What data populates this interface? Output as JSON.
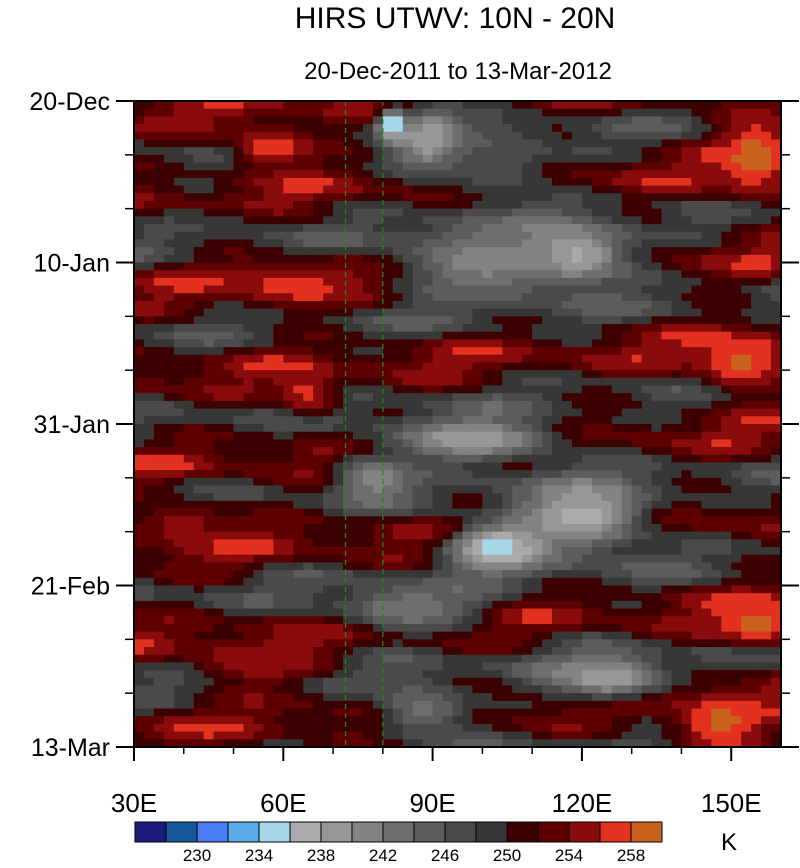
{
  "chart_data": {
    "type": "heatmap",
    "title": "HIRS UTWV: 10N - 20N",
    "subtitle": "20-Dec-2011 to 13-Mar-2012",
    "x_axis": {
      "range": [
        30,
        160
      ],
      "ticks": [
        30,
        60,
        90,
        120,
        150
      ],
      "tick_labels": [
        "30E",
        "60E",
        "90E",
        "120E",
        "150E"
      ]
    },
    "y_axis": {
      "range_days": [
        0,
        84
      ],
      "direction": "top-to-bottom",
      "ticks": [
        0,
        21,
        42,
        63,
        84
      ],
      "tick_labels": [
        "20-Dec",
        "10-Jan",
        "31-Jan",
        "21-Feb",
        "13-Mar"
      ]
    },
    "reference_lines_lon": [
      72.5,
      80
    ],
    "colorbar": {
      "unit": "K",
      "levels": [
        228,
        230,
        232,
        234,
        236,
        238,
        240,
        242,
        244,
        246,
        248,
        250,
        252,
        254,
        256,
        258
      ],
      "label_values": [
        "230",
        "234",
        "238",
        "242",
        "246",
        "250",
        "254",
        "258"
      ],
      "colors": [
        "#1c1c7a",
        "#175a9c",
        "#4a7df5",
        "#5aaae8",
        "#a6d8ea",
        "#aaaaaa",
        "#979797",
        "#838383",
        "#6e6e6e",
        "#5c5c5c",
        "#4a4a4a",
        "#373737",
        "#3d0000",
        "#5e0000",
        "#8a0b0b",
        "#e2311e",
        "#c9621f"
      ]
    },
    "features": [
      {
        "lon": 58,
        "day": 6,
        "value": 258,
        "sx": 9,
        "sy": 3
      },
      {
        "lon": 82,
        "day": 3,
        "value": 232,
        "sx": 3,
        "sy": 2
      },
      {
        "lon": 90,
        "day": 5,
        "value": 236,
        "sx": 7,
        "sy": 4
      },
      {
        "lon": 103,
        "day": 8,
        "value": 246,
        "sx": 12,
        "sy": 6
      },
      {
        "lon": 155,
        "day": 7,
        "value": 259,
        "sx": 8,
        "sy": 6
      },
      {
        "lon": 118,
        "day": 20,
        "value": 236,
        "sx": 12,
        "sy": 4
      },
      {
        "lon": 100,
        "day": 21,
        "value": 241,
        "sx": 18,
        "sy": 5
      },
      {
        "lon": 62,
        "day": 24,
        "value": 257,
        "sx": 12,
        "sy": 3
      },
      {
        "lon": 45,
        "day": 16,
        "value": 248,
        "sx": 12,
        "sy": 2
      },
      {
        "lon": 152,
        "day": 34,
        "value": 259,
        "sx": 9,
        "sy": 4
      },
      {
        "lon": 65,
        "day": 38,
        "value": 257,
        "sx": 6,
        "sy": 3
      },
      {
        "lon": 98,
        "day": 44,
        "value": 238,
        "sx": 18,
        "sy": 3
      },
      {
        "lon": 78,
        "day": 49,
        "value": 240,
        "sx": 7,
        "sy": 3
      },
      {
        "lon": 120,
        "day": 54,
        "value": 237,
        "sx": 14,
        "sy": 5
      },
      {
        "lon": 103,
        "day": 58,
        "value": 234,
        "sx": 10,
        "sy": 3
      },
      {
        "lon": 40,
        "day": 55,
        "value": 255,
        "sx": 12,
        "sy": 3
      },
      {
        "lon": 85,
        "day": 66,
        "value": 242,
        "sx": 15,
        "sy": 3
      },
      {
        "lon": 155,
        "day": 68,
        "value": 259,
        "sx": 8,
        "sy": 3
      },
      {
        "lon": 125,
        "day": 75,
        "value": 238,
        "sx": 12,
        "sy": 3
      },
      {
        "lon": 88,
        "day": 79,
        "value": 243,
        "sx": 10,
        "sy": 4
      },
      {
        "lon": 148,
        "day": 81,
        "value": 259,
        "sx": 10,
        "sy": 4
      },
      {
        "lon": 55,
        "day": 73,
        "value": 256,
        "sx": 14,
        "sy": 3
      }
    ]
  }
}
